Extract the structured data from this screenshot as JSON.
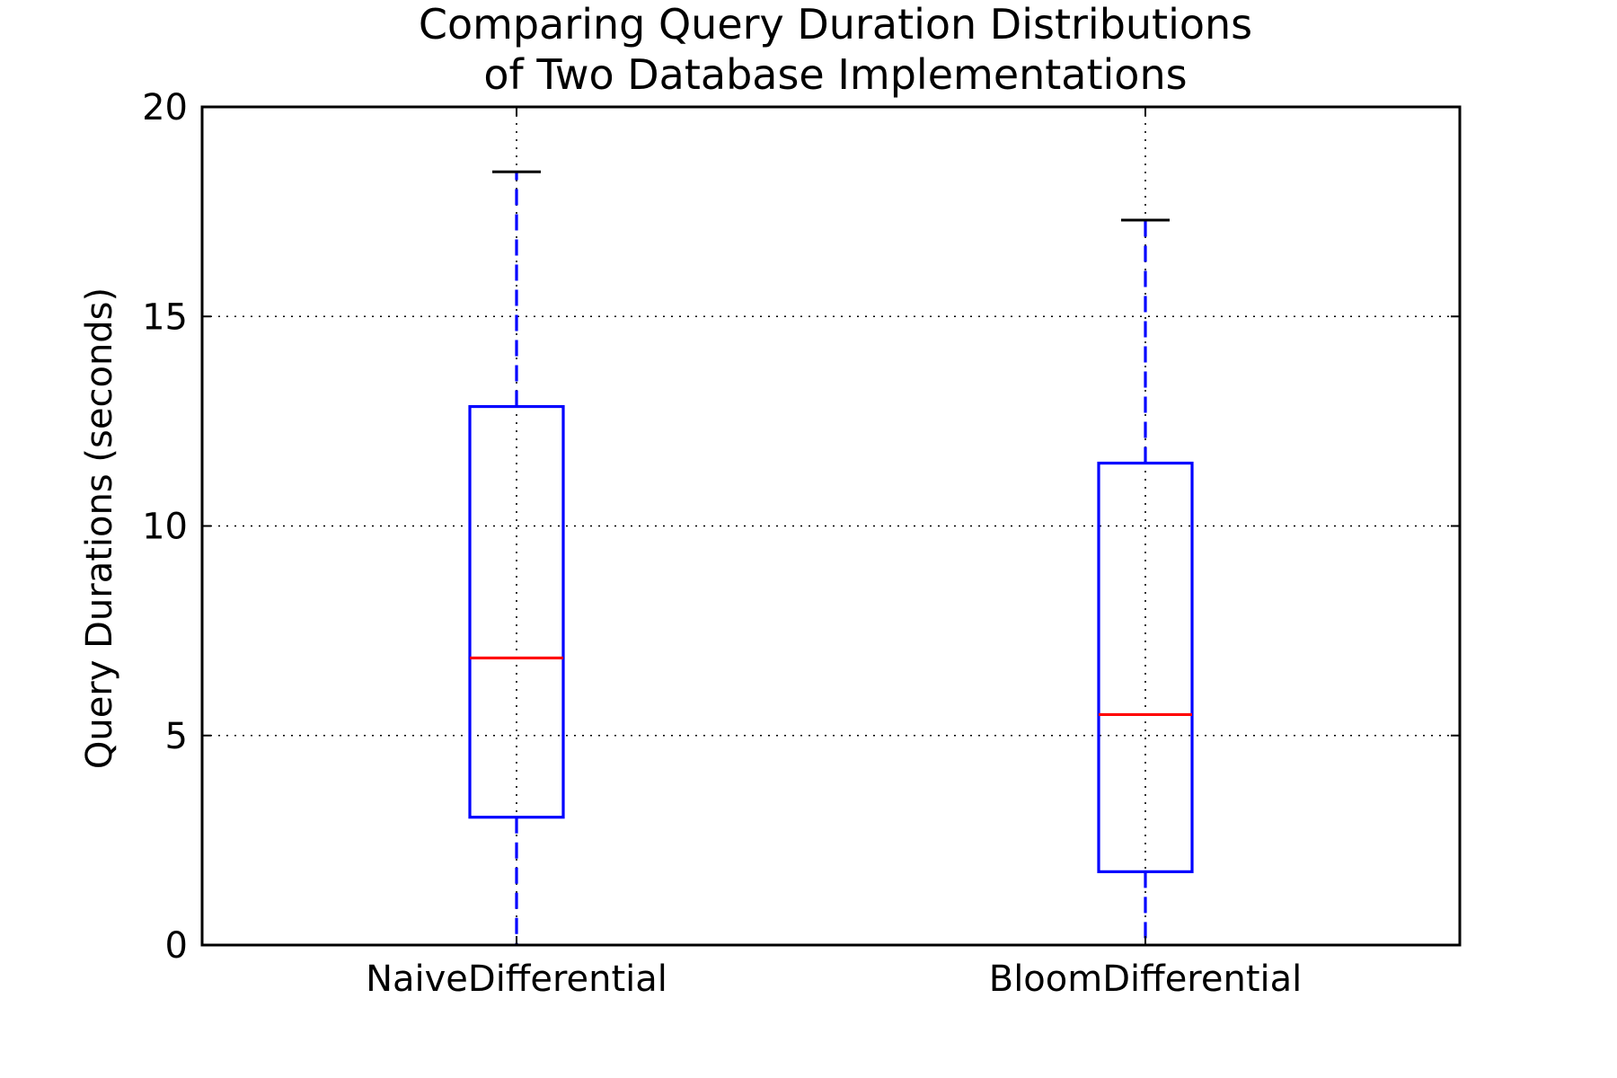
{
  "chart_data": {
    "type": "boxplot",
    "title_lines": [
      "Comparing Query Duration Distributions",
      "of Two Database Implementations"
    ],
    "xlabel": "",
    "ylabel": "Query Durations (seconds)",
    "ylim": [
      0,
      20
    ],
    "yticks": [
      0,
      5,
      10,
      15,
      20
    ],
    "grid": true,
    "categories": [
      "NaiveDifferential",
      "BloomDifferential"
    ],
    "boxes": [
      {
        "label": "NaiveDifferential",
        "whisker_low": 0.0,
        "q1": 3.05,
        "median": 6.85,
        "q3": 12.85,
        "whisker_high": 18.45
      },
      {
        "label": "BloomDifferential",
        "whisker_low": 0.0,
        "q1": 1.75,
        "median": 5.5,
        "q3": 11.5,
        "whisker_high": 17.3
      }
    ],
    "colors": {
      "box": "#0000ff",
      "median": "#ff0000",
      "whisker": "#0000ff",
      "cap": "#000000",
      "grid": "#000000",
      "axes": "#000000"
    }
  }
}
